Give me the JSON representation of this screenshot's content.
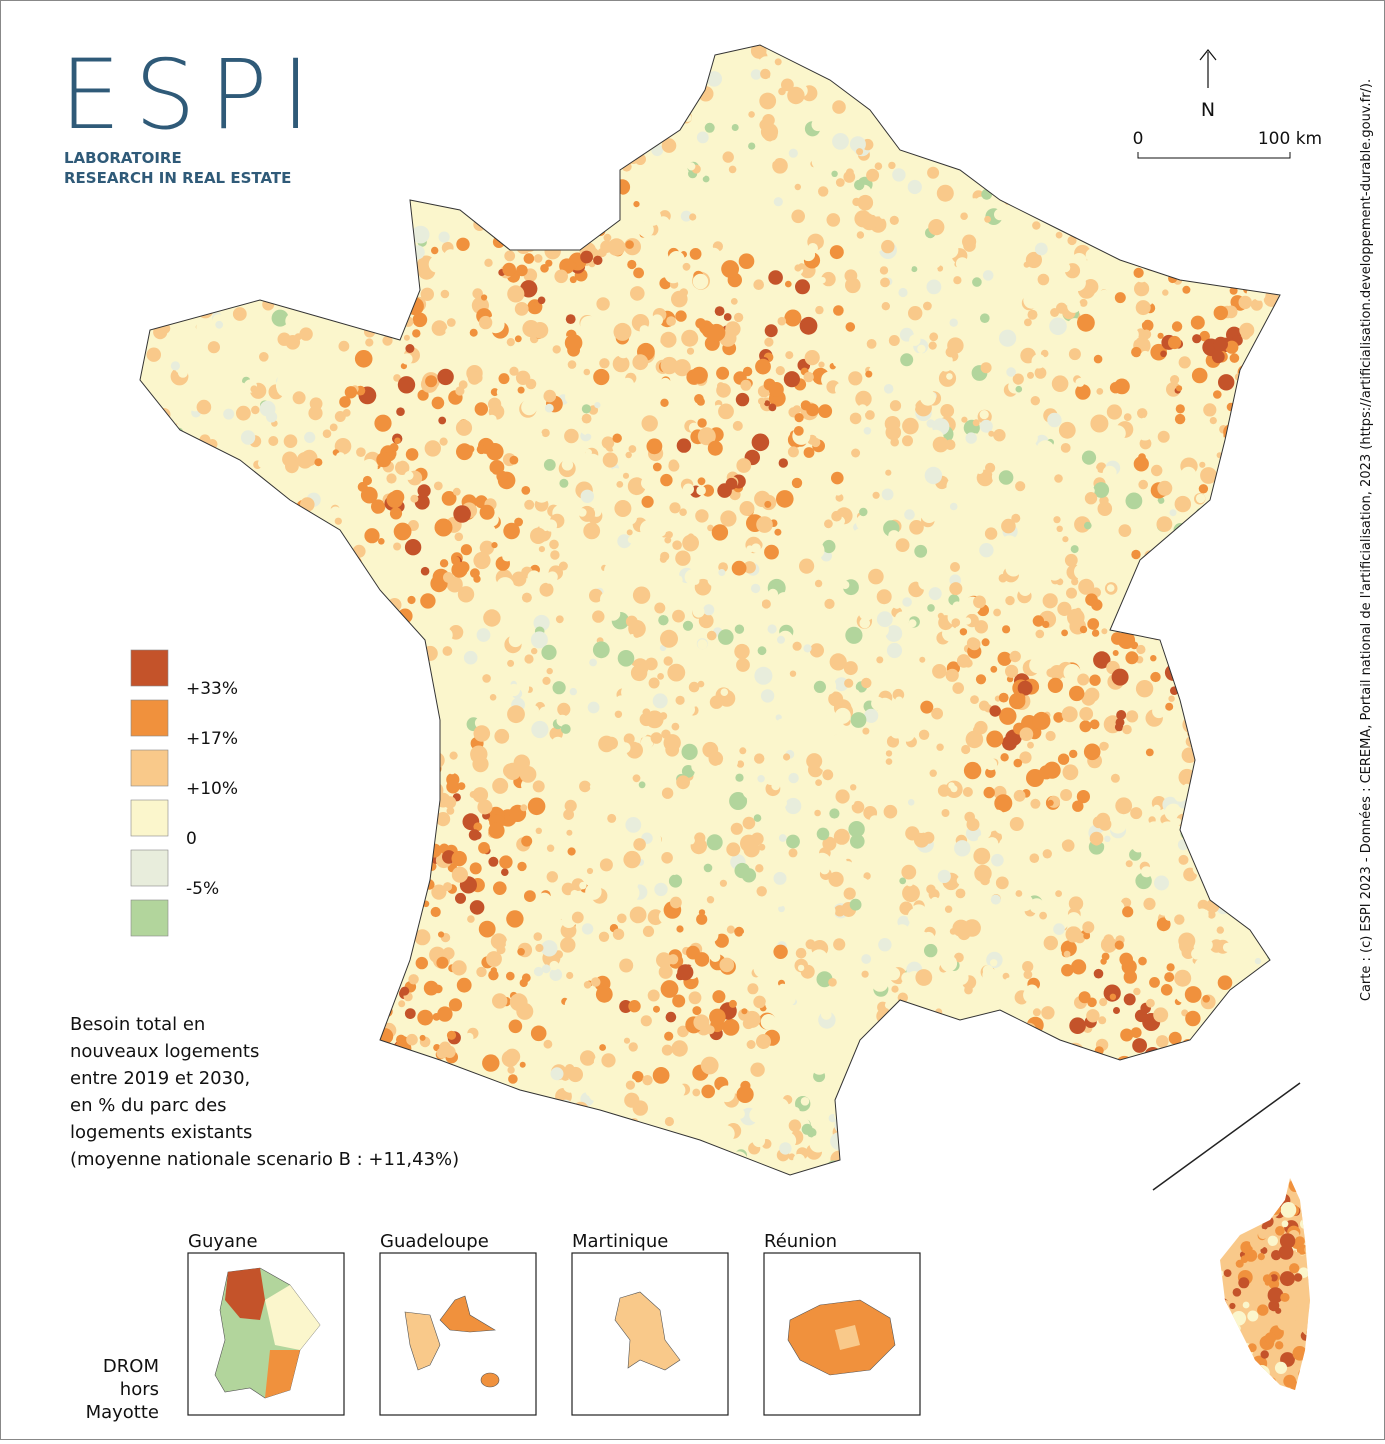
{
  "logo": {
    "title": "ESPI",
    "line1": "LABORATOIRE",
    "line2": "RESEARCH IN REAL ESTATE"
  },
  "north_arrow": "N",
  "scale": {
    "start": "0",
    "end": "100 km"
  },
  "credit": "Carte : (c) ESPI 2023 - Données : CEREMA, Portail national de l'artificialisation, 2023 (https://artificialisation.developpement-durable.gouv.fr/).",
  "legend": {
    "colors": [
      "#c4532a",
      "#f0913d",
      "#f9c98a",
      "#fbf6cc",
      "#e8eddc",
      "#b2d59c"
    ],
    "labels": [
      "+33%",
      "+17%",
      "+10%",
      "0",
      "-5%"
    ],
    "title_lines": [
      "Besoin total en",
      "nouveaux logements",
      "entre 2019 et 2030,",
      "en % du parc des",
      "logements existants",
      "(moyenne nationale scenario B : +11,43%)"
    ]
  },
  "insets": {
    "caption_lines": [
      "DROM",
      "hors",
      "Mayotte"
    ],
    "names": [
      "Guyane",
      "Guadeloupe",
      "Martinique",
      "Réunion"
    ]
  }
}
